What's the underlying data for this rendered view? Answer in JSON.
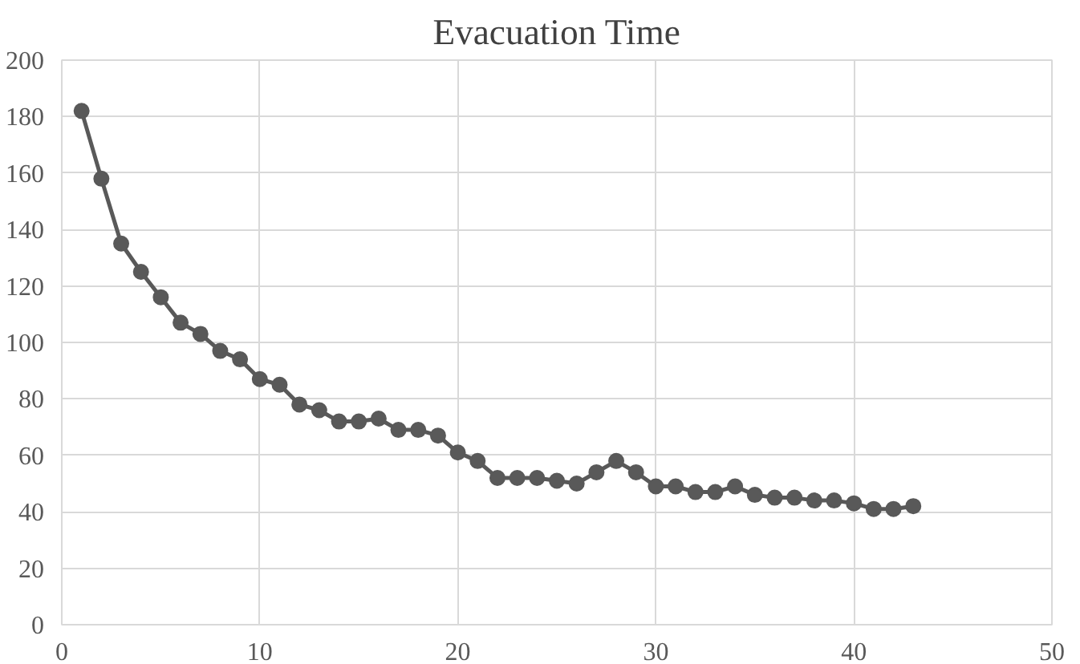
{
  "chart_data": {
    "type": "line",
    "title": "Evacuation Time",
    "x": [
      1,
      2,
      3,
      4,
      5,
      6,
      7,
      8,
      9,
      10,
      11,
      12,
      13,
      14,
      15,
      16,
      17,
      18,
      19,
      20,
      21,
      22,
      23,
      24,
      25,
      26,
      27,
      28,
      29,
      30,
      31,
      32,
      33,
      34,
      35,
      36,
      37,
      38,
      39,
      40,
      41,
      42,
      43
    ],
    "series": [
      {
        "color": "#595959",
        "values": [
          182,
          158,
          135,
          125,
          116,
          107,
          103,
          97,
          94,
          87,
          85,
          78,
          76,
          72,
          72,
          73,
          69,
          69,
          67,
          61,
          58,
          52,
          52,
          52,
          51,
          50,
          54,
          58,
          54,
          49,
          49,
          47,
          47,
          49,
          46,
          45,
          45,
          44,
          44,
          43,
          41,
          41,
          42
        ]
      }
    ],
    "xlim": [
      0,
      50
    ],
    "xticks": [
      0,
      10,
      20,
      30,
      40,
      50
    ],
    "ylim": [
      0,
      200
    ],
    "yticks": [
      0,
      20,
      40,
      60,
      80,
      100,
      120,
      140,
      160,
      180,
      200
    ],
    "grid": true,
    "marker": "circle",
    "line_style": "solid"
  }
}
